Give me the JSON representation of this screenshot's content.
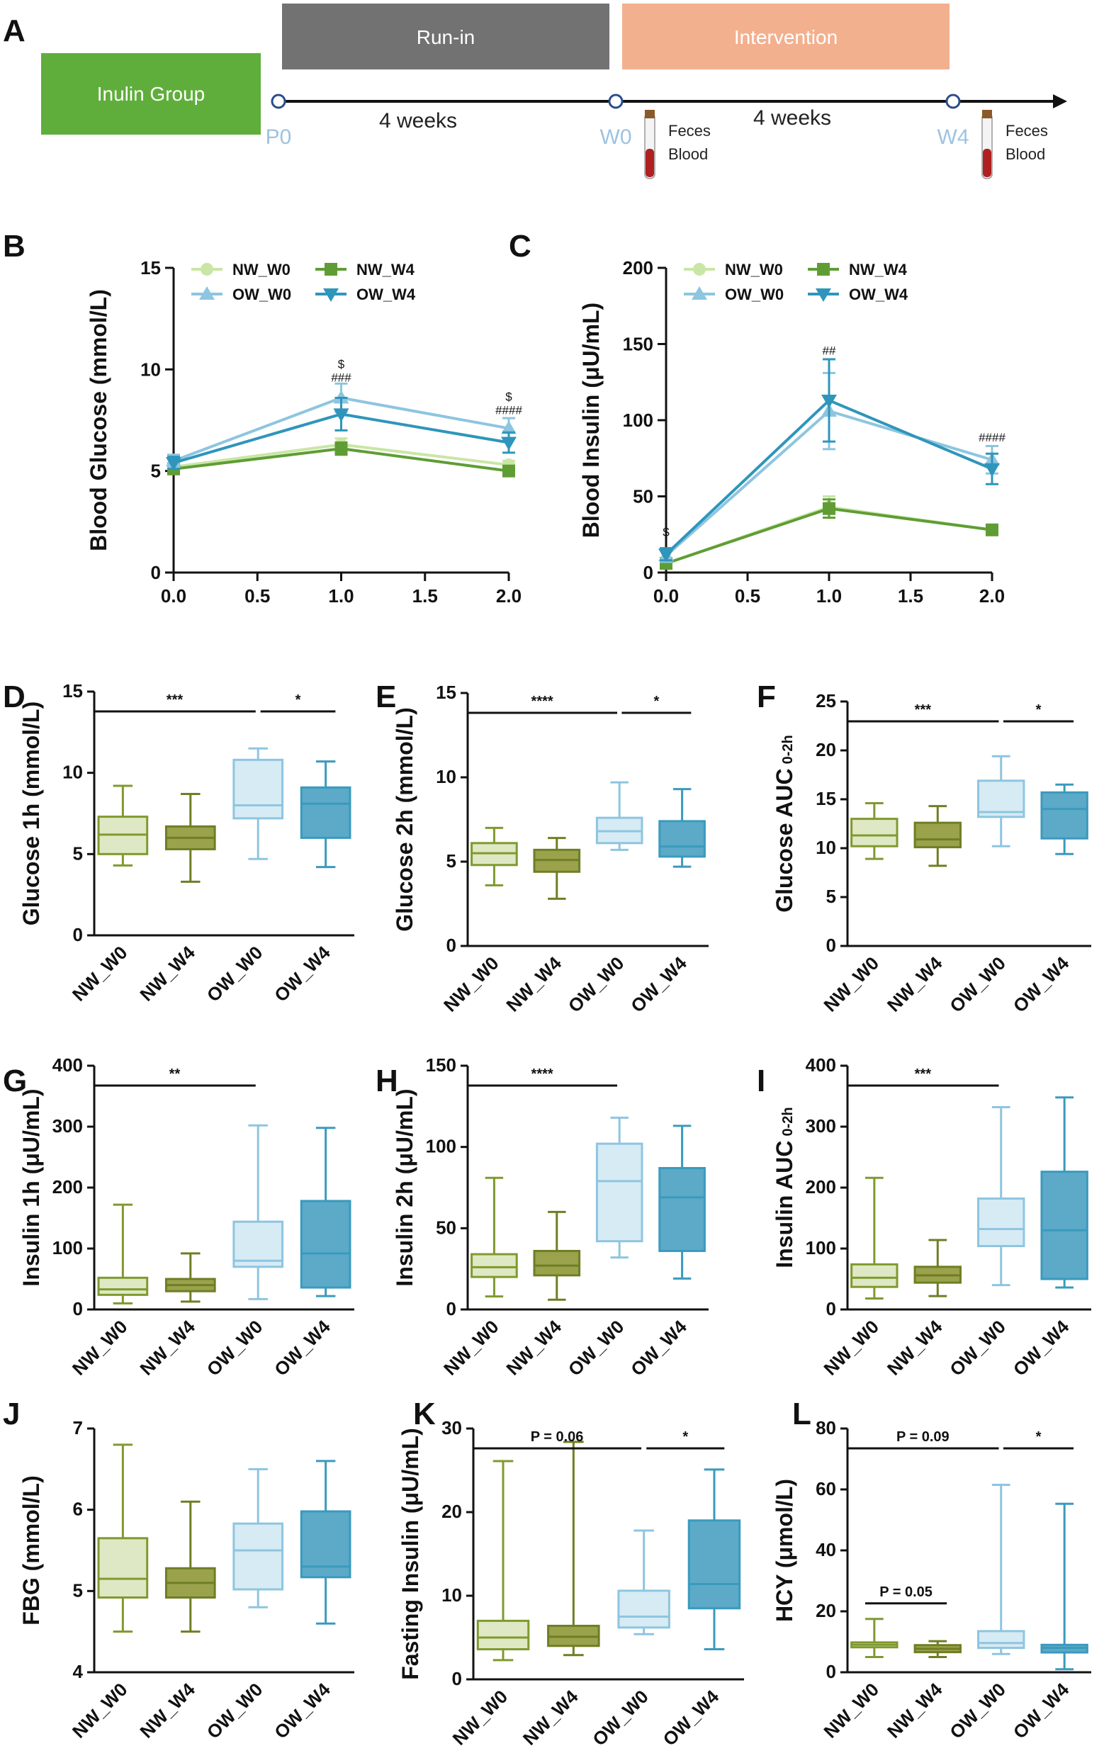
{
  "panel_letters": [
    "A",
    "B",
    "C",
    "D",
    "E",
    "F",
    "G",
    "H",
    "I",
    "J",
    "K",
    "L"
  ],
  "timeline": {
    "group_label": "Inulin Group",
    "phase1_label": "Run-in",
    "phase2_label": "Intervention",
    "points": [
      "P0",
      "W0",
      "W4"
    ],
    "duration1": "4  weeks",
    "duration2": "4  weeks",
    "sample1": [
      "Feces",
      "Blood"
    ],
    "sample2": [
      "Feces",
      "Blood"
    ],
    "colors": {
      "group": "#5fae3b",
      "phase1": "#727272",
      "phase2": "#f3b08e",
      "point_label": "#9ec3e0"
    }
  },
  "colors": {
    "NW_W0": "#c9e6a6",
    "NW_W4": "#5f9d34",
    "OW_W0": "#8ec5e0",
    "OW_W4": "#2f95bb",
    "box_NW_W0": "#dfe8c4",
    "box_NW_W4": "#9ba24c",
    "box_OW_W0": "#d6ebf4",
    "box_OW_W4": "#5caac8"
  },
  "chart_data": [
    {
      "id": "B",
      "type": "line",
      "ylabel": "Blood Glucose (mmol/L)",
      "xlim": [
        0,
        2
      ],
      "ylim": [
        0,
        15
      ],
      "xticks": [
        "0.0",
        "0.5",
        "1.0",
        "1.5",
        "2.0"
      ],
      "yticks": [
        "0",
        "5",
        "10",
        "15"
      ],
      "x": [
        0.0,
        1.0,
        2.0
      ],
      "series": [
        {
          "name": "NW_W0",
          "marker": "circle",
          "values": [
            5.2,
            6.3,
            5.3
          ],
          "err": [
            0.2,
            0.3,
            0.2
          ]
        },
        {
          "name": "NW_W4",
          "marker": "square",
          "values": [
            5.1,
            6.1,
            5.0
          ],
          "err": [
            0.2,
            0.3,
            0.2
          ]
        },
        {
          "name": "OW_W0",
          "marker": "triangle-up",
          "values": [
            5.5,
            8.6,
            7.1
          ],
          "err": [
            0.3,
            0.7,
            0.5
          ]
        },
        {
          "name": "OW_W4",
          "marker": "triangle-down",
          "values": [
            5.4,
            7.8,
            6.4
          ],
          "err": [
            0.3,
            0.8,
            0.5
          ]
        }
      ],
      "annotations": [
        {
          "x": 1.0,
          "y": 9.4,
          "lines": [
            "$",
            "###"
          ]
        },
        {
          "x": 2.0,
          "y": 7.8,
          "lines": [
            "$",
            "####"
          ]
        }
      ],
      "legend": "top"
    },
    {
      "id": "C",
      "type": "line",
      "ylabel": "Blood Insulin (μU/mL)",
      "xlim": [
        0,
        2
      ],
      "ylim": [
        0,
        200
      ],
      "xticks": [
        "0.0",
        "0.5",
        "1.0",
        "1.5",
        "2.0"
      ],
      "yticks": [
        "0",
        "50",
        "100",
        "150",
        "200"
      ],
      "x": [
        0.0,
        1.0,
        2.0
      ],
      "series": [
        {
          "name": "NW_W0",
          "marker": "circle",
          "values": [
            6,
            43,
            28
          ],
          "err": [
            2,
            7,
            3
          ]
        },
        {
          "name": "NW_W4",
          "marker": "square",
          "values": [
            6,
            42,
            28
          ],
          "err": [
            2,
            6,
            3
          ]
        },
        {
          "name": "OW_W0",
          "marker": "triangle-up",
          "values": [
            11,
            106,
            74
          ],
          "err": [
            4,
            25,
            9
          ]
        },
        {
          "name": "OW_W4",
          "marker": "triangle-down",
          "values": [
            12,
            113,
            68
          ],
          "err": [
            4,
            27,
            10
          ]
        }
      ],
      "annotations": [
        {
          "x": 0.0,
          "y": 24,
          "lines": [
            "$"
          ]
        },
        {
          "x": 1.0,
          "y": 143,
          "lines": [
            "##"
          ]
        },
        {
          "x": 2.0,
          "y": 86,
          "lines": [
            "####"
          ]
        }
      ],
      "legend": "top"
    },
    {
      "id": "D",
      "type": "box",
      "ylabel": "Glucose 1h (mmol/L)",
      "ylabel_sub": "",
      "ylim": [
        0,
        15
      ],
      "yticks": [
        "0",
        "5",
        "10",
        "15"
      ],
      "categories": [
        "NW_W0",
        "NW_W4",
        "OW_W0",
        "OW_W4"
      ],
      "boxes": [
        [
          4.3,
          5.0,
          6.2,
          7.3,
          9.2
        ],
        [
          3.3,
          5.3,
          6.0,
          6.7,
          8.7
        ],
        [
          4.7,
          7.2,
          8.0,
          10.8,
          11.5
        ],
        [
          4.2,
          6.0,
          8.1,
          9.1,
          10.7
        ]
      ],
      "brackets": [
        {
          "from": 0,
          "to": 2,
          "text": "***"
        },
        {
          "from": 2,
          "to": 3,
          "text": "*"
        }
      ]
    },
    {
      "id": "E",
      "type": "box",
      "ylabel": "Glucose 2h (mmol/L)",
      "ylabel_sub": "",
      "ylim": [
        0,
        15
      ],
      "yticks": [
        "0",
        "5",
        "10",
        "15"
      ],
      "categories": [
        "NW_W0",
        "NW_W4",
        "OW_W0",
        "OW_W4"
      ],
      "boxes": [
        [
          3.6,
          4.8,
          5.5,
          6.1,
          7.0
        ],
        [
          2.8,
          4.4,
          5.1,
          5.7,
          6.4
        ],
        [
          5.7,
          6.1,
          6.8,
          7.6,
          9.7
        ],
        [
          4.7,
          5.3,
          5.9,
          7.4,
          9.3
        ]
      ],
      "brackets": [
        {
          "from": 0,
          "to": 2,
          "text": "****"
        },
        {
          "from": 2,
          "to": 3,
          "text": "*"
        }
      ]
    },
    {
      "id": "F",
      "type": "box",
      "ylabel": "Glucose AUC",
      "ylabel_sub": "0-2h",
      "ylim": [
        0,
        25
      ],
      "yticks": [
        "0",
        "5",
        "10",
        "15",
        "20",
        "25"
      ],
      "categories": [
        "NW_W0",
        "NW_W4",
        "OW_W0",
        "OW_W4"
      ],
      "boxes": [
        [
          8.9,
          10.2,
          11.3,
          13.0,
          14.6
        ],
        [
          8.2,
          10.1,
          10.9,
          12.6,
          14.3
        ],
        [
          10.2,
          13.2,
          13.7,
          16.9,
          19.4
        ],
        [
          9.4,
          11.0,
          14.0,
          15.7,
          16.5
        ]
      ],
      "brackets": [
        {
          "from": 0,
          "to": 2,
          "text": "***"
        },
        {
          "from": 2,
          "to": 3,
          "text": "*"
        }
      ]
    },
    {
      "id": "G",
      "type": "box",
      "ylabel": "Insulin 1h (μU/mL)",
      "ylabel_sub": "",
      "ylim": [
        0,
        400
      ],
      "yticks": [
        "0",
        "100",
        "200",
        "300",
        "400"
      ],
      "categories": [
        "NW_W0",
        "NW_W4",
        "OW_W0",
        "OW_W4"
      ],
      "boxes": [
        [
          10,
          24,
          33,
          52,
          172
        ],
        [
          13,
          30,
          40,
          50,
          92
        ],
        [
          17,
          70,
          80,
          144,
          302
        ],
        [
          22,
          36,
          92,
          178,
          298
        ]
      ],
      "brackets": [
        {
          "from": 0,
          "to": 2,
          "text": "**"
        }
      ]
    },
    {
      "id": "H",
      "type": "box",
      "ylabel": "Insulin 2h (μU/mL)",
      "ylabel_sub": "",
      "ylim": [
        0,
        150
      ],
      "yticks": [
        "0",
        "50",
        "100",
        "150"
      ],
      "categories": [
        "NW_W0",
        "NW_W4",
        "OW_W0",
        "OW_W4"
      ],
      "boxes": [
        [
          8,
          20,
          26,
          34,
          81
        ],
        [
          6,
          21,
          27,
          36,
          60
        ],
        [
          32,
          42,
          79,
          102,
          118
        ],
        [
          19,
          36,
          69,
          87,
          113
        ]
      ],
      "brackets": [
        {
          "from": 0,
          "to": 2,
          "text": "****"
        }
      ]
    },
    {
      "id": "I",
      "type": "box",
      "ylabel": "Insulin AUC",
      "ylabel_sub": "0-2h",
      "ylim": [
        0,
        400
      ],
      "yticks": [
        "0",
        "100",
        "200",
        "300",
        "400"
      ],
      "categories": [
        "NW_W0",
        "NW_W4",
        "OW_W0",
        "OW_W4"
      ],
      "boxes": [
        [
          18,
          37,
          52,
          74,
          216
        ],
        [
          22,
          44,
          56,
          70,
          114
        ],
        [
          40,
          104,
          132,
          182,
          332
        ],
        [
          36,
          50,
          130,
          226,
          348
        ]
      ],
      "brackets": [
        {
          "from": 0,
          "to": 2,
          "text": "***"
        }
      ]
    },
    {
      "id": "J",
      "type": "box",
      "ylabel": "FBG (mmol/L)",
      "ylabel_sub": "",
      "ylim": [
        4,
        7
      ],
      "yticks": [
        "4",
        "5",
        "6",
        "7"
      ],
      "categories": [
        "NW_W0",
        "NW_W4",
        "OW_W0",
        "OW_W4"
      ],
      "boxes": [
        [
          4.5,
          4.92,
          5.15,
          5.65,
          6.8
        ],
        [
          4.5,
          4.92,
          5.1,
          5.28,
          6.1
        ],
        [
          4.8,
          5.02,
          5.5,
          5.83,
          6.5
        ],
        [
          4.6,
          5.17,
          5.3,
          5.98,
          6.6
        ]
      ],
      "brackets": []
    },
    {
      "id": "K",
      "type": "box",
      "ylabel": "Fasting Insulin (μU/mL)",
      "ylabel_sub": "",
      "ylim": [
        0,
        30
      ],
      "yticks": [
        "0",
        "10",
        "20",
        "30"
      ],
      "categories": [
        "NW_W0",
        "NW_W4",
        "OW_W0",
        "OW_W4"
      ],
      "boxes": [
        [
          2.3,
          3.6,
          5.0,
          7.0,
          26.1
        ],
        [
          2.9,
          4.0,
          5.1,
          6.4,
          28.4
        ],
        [
          5.4,
          6.2,
          7.5,
          10.6,
          17.8
        ],
        [
          3.6,
          8.5,
          11.4,
          19.0,
          25.1
        ]
      ],
      "brackets": [
        {
          "from": 0,
          "to": 2,
          "text": "P = 0.06"
        },
        {
          "from": 2,
          "to": 3,
          "text": "*"
        }
      ]
    },
    {
      "id": "L",
      "type": "box",
      "ylabel": "HCY (μmol/L)",
      "ylabel_sub": "",
      "ylim": [
        0,
        80
      ],
      "yticks": [
        "0",
        "20",
        "40",
        "60",
        "80"
      ],
      "categories": [
        "NW_W0",
        "NW_W4",
        "OW_W0",
        "OW_W4"
      ],
      "boxes": [
        [
          5,
          8.2,
          9.0,
          9.8,
          17.5
        ],
        [
          5,
          6.6,
          7.7,
          8.9,
          10.2
        ],
        [
          6,
          8.0,
          9.6,
          13.5,
          61.5
        ],
        [
          1,
          6.5,
          8.0,
          9.0,
          55.3
        ]
      ],
      "brackets": [
        {
          "from": 0,
          "to": 2,
          "text": "P = 0.09"
        },
        {
          "from": 2,
          "to": 3,
          "text": "*"
        },
        {
          "from": 0,
          "to": 1,
          "text": "P = 0.05",
          "level": "low"
        }
      ]
    }
  ]
}
